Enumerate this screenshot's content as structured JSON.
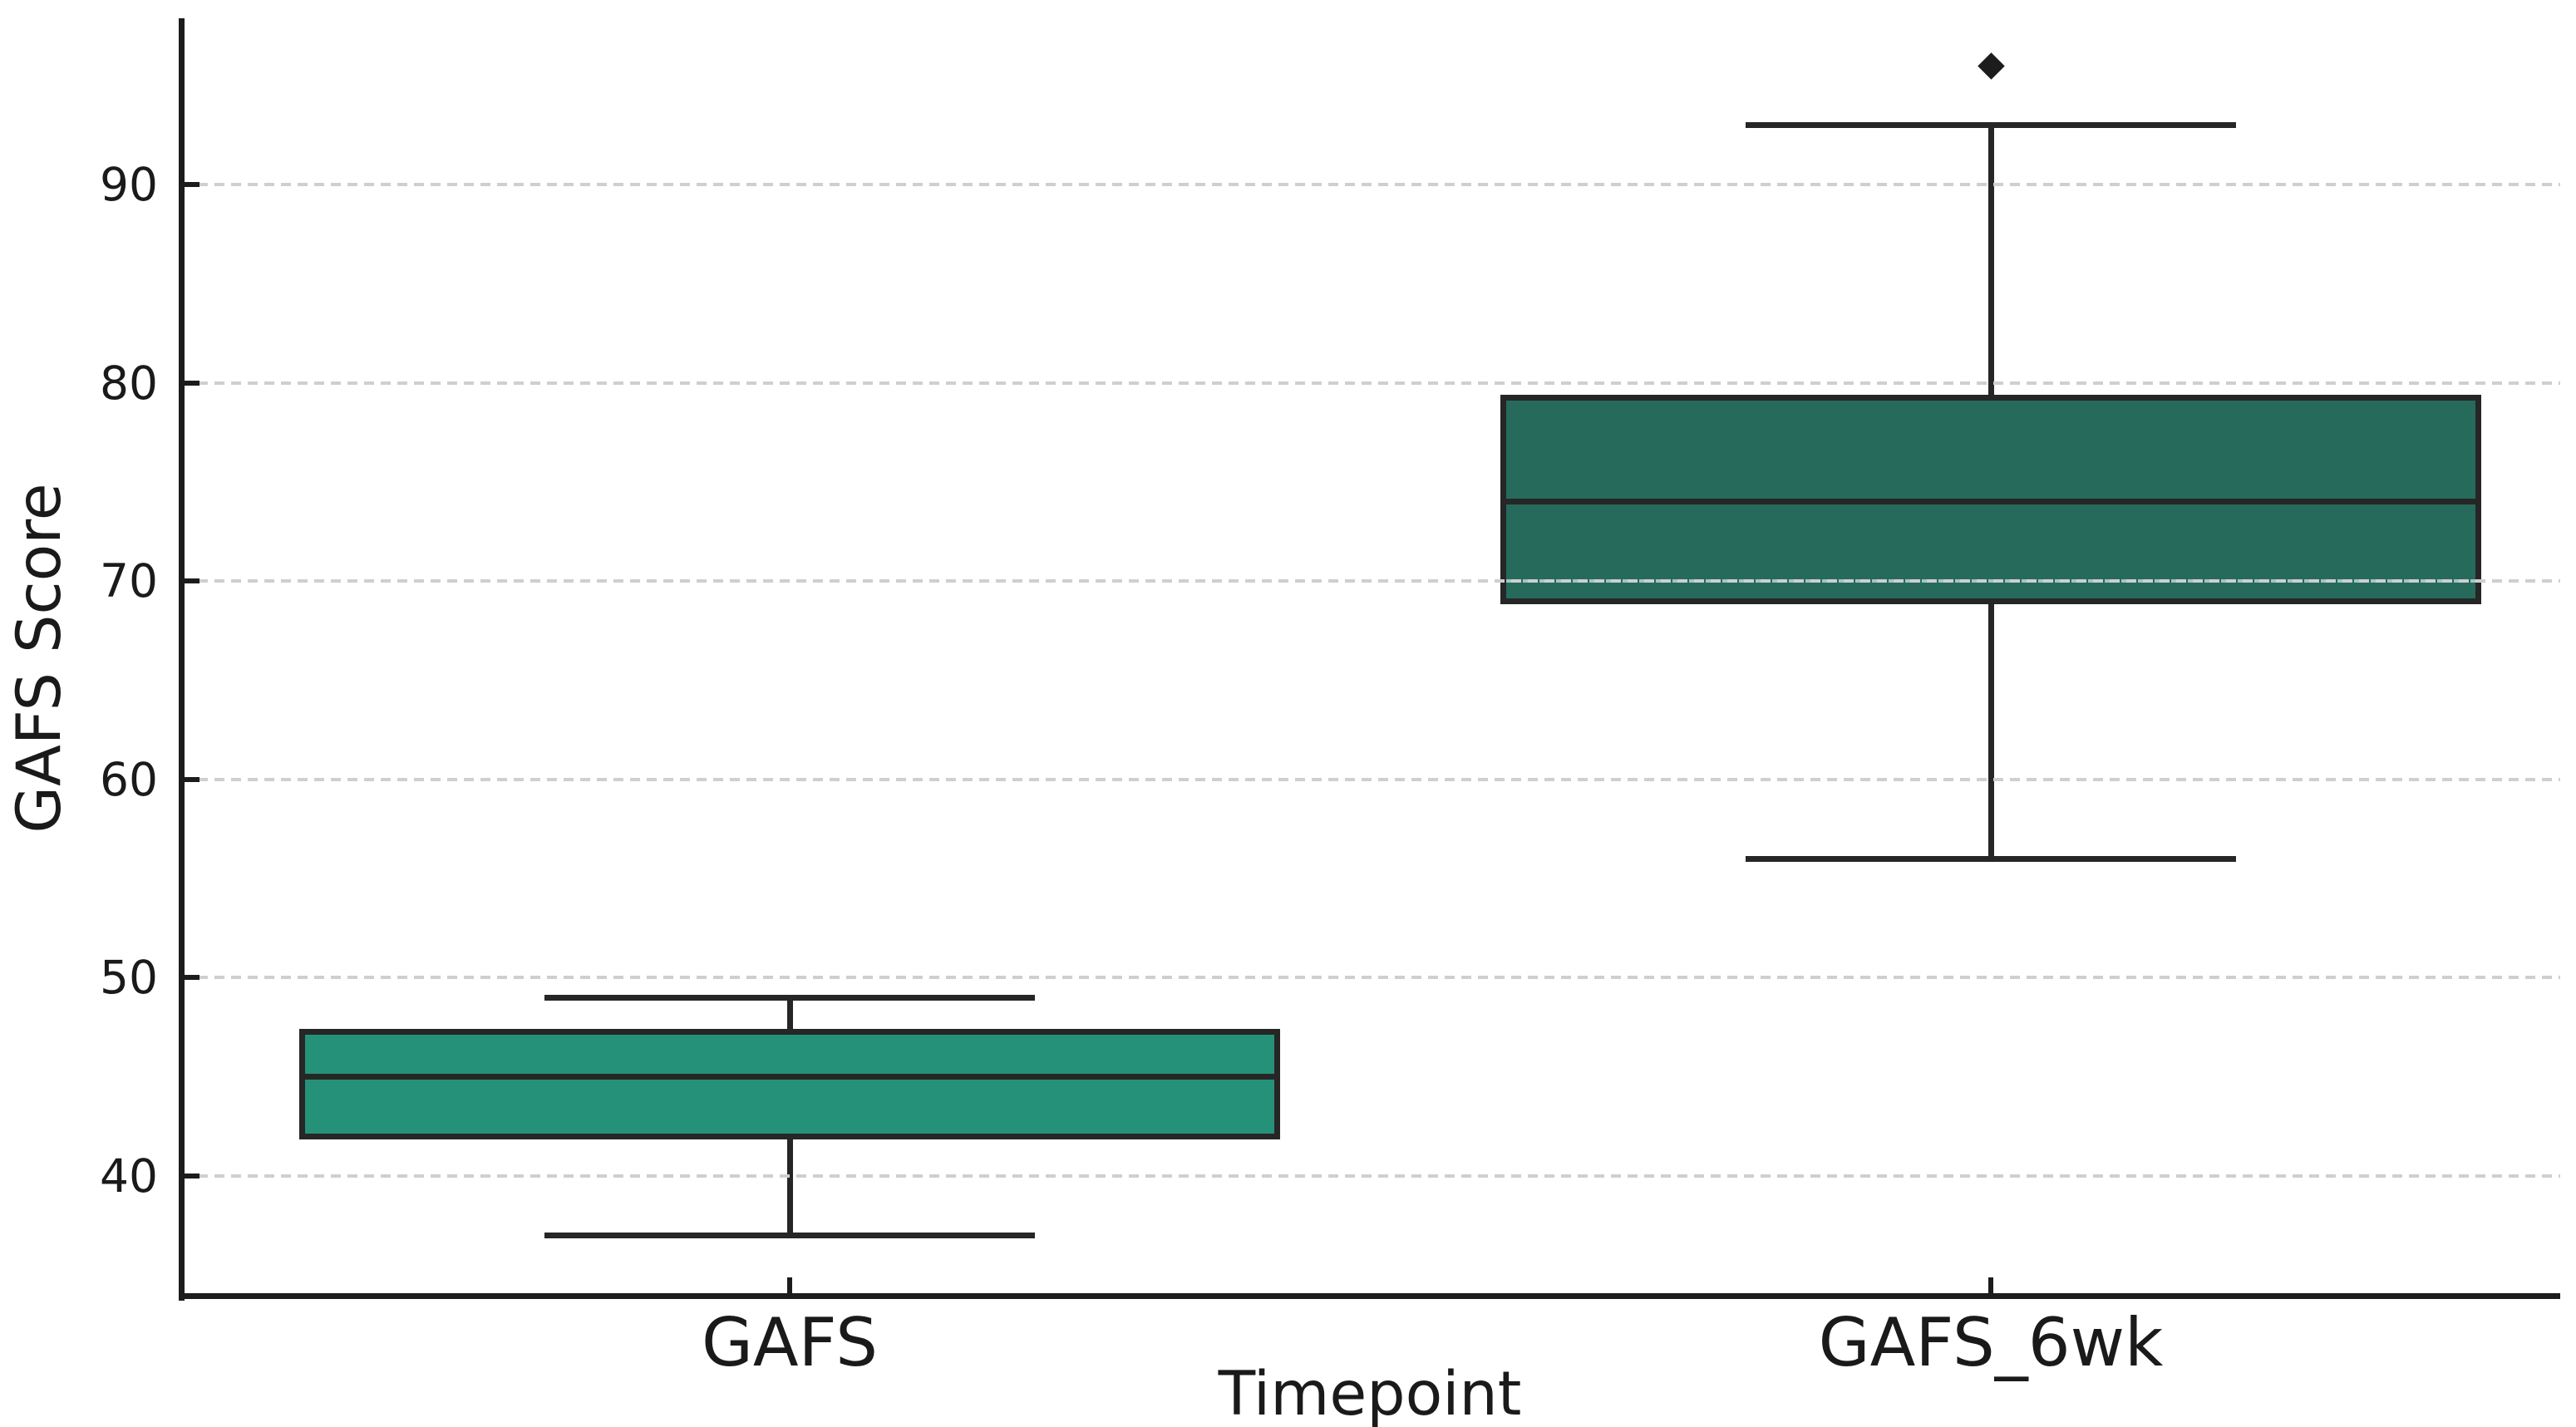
{
  "figure": {
    "background": "#ffffff"
  },
  "axes": {
    "x_label": "Timepoint",
    "y_label": "GAFS Score",
    "x_tick_labels": [
      "GAFS",
      "GAFS_6wk"
    ],
    "y_tick_values": [
      90,
      80,
      70,
      60,
      50,
      40
    ],
    "text_color": "#1a1a1a",
    "spine_color": "#1c1c1c",
    "grid_color": "#cfcfcf"
  },
  "chart_data": {
    "type": "boxplot",
    "title": "",
    "xlabel": "Timepoint",
    "ylabel": "GAFS Score",
    "categories": [
      "GAFS",
      "GAFS_6wk"
    ],
    "ylim": [
      34,
      98.4
    ],
    "y_ticks": [
      40,
      50,
      60,
      70,
      80,
      90
    ],
    "grid": "horizontal dashed, drawn over box fills",
    "legend": "none",
    "series": [
      {
        "name": "GAFS",
        "whisker_low": 37,
        "q1": 42,
        "median": 45,
        "q3": 47.25,
        "whisker_high": 49,
        "outliers": [],
        "fill_color": "#259178"
      },
      {
        "name": "GAFS_6wk",
        "whisker_low": 56,
        "q1": 69,
        "median": 74,
        "q3": 79.25,
        "whisker_high": 93,
        "outliers": [
          96
        ],
        "fill_color": "#266a5c"
      }
    ],
    "box_edge_color": "#262626",
    "median_color": "#262626",
    "whisker_color": "#262626",
    "outlier_marker": "diamond",
    "outlier_color": "#1c1c1c"
  }
}
